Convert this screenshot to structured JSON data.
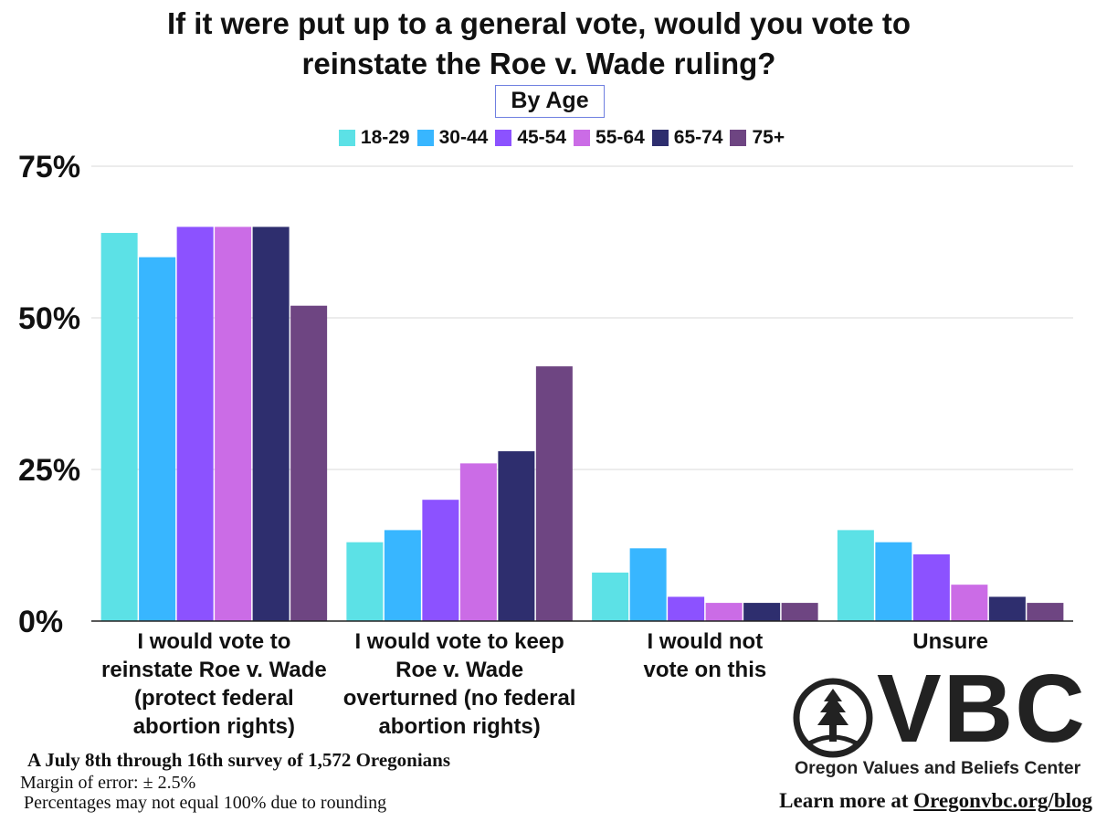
{
  "chart_data": {
    "type": "bar",
    "title": "If it were put up to a general vote, would you vote to reinstate the Roe v. Wade ruling?",
    "title_lines": [
      "If it were put up to a general vote, would you vote to",
      "reinstate the Roe v. Wade ruling?"
    ],
    "subtitle": "By Age",
    "categories": [
      "I would vote to reinstate Roe v. Wade (protect federal abortion rights)",
      "I would vote to keep Roe v. Wade overturned (no federal abortion rights)",
      "I would not vote on this",
      "Unsure"
    ],
    "category_lines": [
      [
        "I would vote to",
        "reinstate Roe v. Wade",
        "(protect federal",
        "abortion rights)"
      ],
      [
        "I would vote to keep",
        "Roe v. Wade",
        "overturned (no federal",
        "abortion rights)"
      ],
      [
        "I would not",
        "vote on this"
      ],
      [
        "Unsure"
      ]
    ],
    "series": [
      {
        "name": "18-29",
        "color": "#5ce1e6",
        "values": [
          64,
          13,
          8,
          15
        ]
      },
      {
        "name": "30-44",
        "color": "#38b6ff",
        "values": [
          60,
          15,
          12,
          13
        ]
      },
      {
        "name": "45-54",
        "color": "#8c52ff",
        "values": [
          65,
          20,
          4,
          11
        ]
      },
      {
        "name": "55-64",
        "color": "#cb6ce6",
        "values": [
          65,
          26,
          3,
          6
        ]
      },
      {
        "name": "65-74",
        "color": "#2e2e6e",
        "values": [
          65,
          28,
          3,
          4
        ]
      },
      {
        "name": "75+",
        "color": "#6e4582",
        "values": [
          52,
          42,
          3,
          3
        ]
      }
    ],
    "ylim": [
      0,
      75
    ],
    "yticks": [
      0,
      25,
      50,
      75
    ],
    "ytick_labels": [
      "0%",
      "25%",
      "50%",
      "75%"
    ],
    "xlabel": "",
    "ylabel": "",
    "grid": true,
    "legend_position": "top"
  },
  "footer": {
    "survey": "A July 8th through 16th survey of 1,572 Oregonians",
    "margin": "Margin of error: ± 2.5%",
    "rounding": "Percentages may not equal  100% due to rounding"
  },
  "logo": {
    "text": "VBC",
    "caption": "Oregon Values and Beliefs Center"
  },
  "learn_more": {
    "prefix": "Learn more at ",
    "link": "Oregonvbc.org/blog"
  },
  "colors": {
    "grid": "#d9d9d9",
    "axis": "#222222",
    "text": "#111111"
  }
}
